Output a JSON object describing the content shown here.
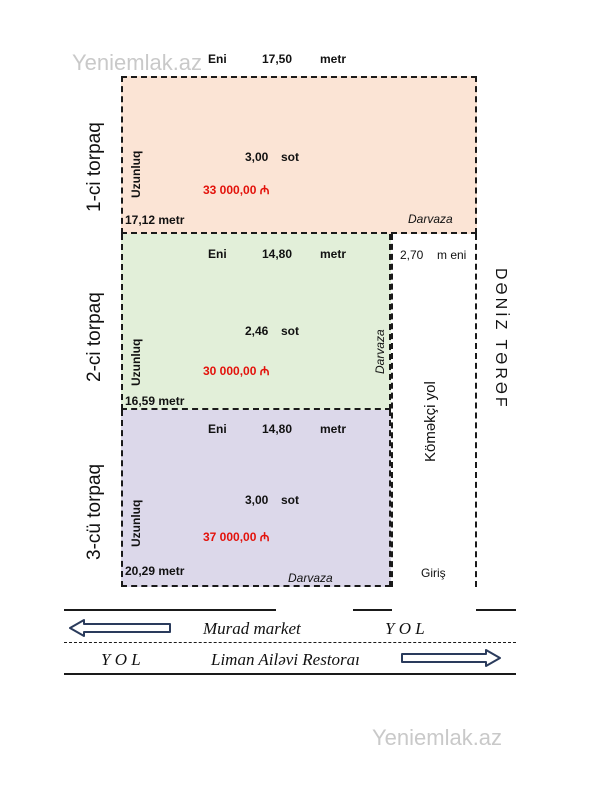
{
  "watermark": "Yeniemlak.az",
  "plots": [
    {
      "name": "1-ci torpaq",
      "width_label": "Eni",
      "width_value": "17,50",
      "width_unit": "metr",
      "length_label": "Uzunluq",
      "length_value": "17,12 metr",
      "area_value": "3,00",
      "area_unit": "sot",
      "price": "33 000,00 ₼",
      "gate": "Darvaza",
      "fill": "#fbe4d5"
    },
    {
      "name": "2-ci torpaq",
      "width_label": "Eni",
      "width_value": "14,80",
      "width_unit": "metr",
      "length_label": "Uzunluq",
      "length_value": "16,59 metr",
      "area_value": "2,46",
      "area_unit": "sot",
      "price": "30 000,00 ₼",
      "gate": "Darvaza",
      "fill": "#e2efd9"
    },
    {
      "name": "3-cü torpaq",
      "width_label": "Eni",
      "width_value": "14,80",
      "width_unit": "metr",
      "length_label": "Uzunluq",
      "length_value": "20,29 metr",
      "area_value": "3,00",
      "area_unit": "sot",
      "price": "37 000,00 ₼",
      "gate": "Darvaza",
      "fill": "#dcd8ea"
    }
  ],
  "side_road": {
    "width_value": "2,70",
    "width_unit": "m eni",
    "name": "Kömәkçi yol",
    "entrance": "Giriş"
  },
  "sea_side": "DƏNİZ TƏRƏF",
  "road": {
    "upper_left": "Murad market",
    "upper_right": "Y O L",
    "lower_left": "Y O L",
    "lower_right": "Liman Ailəvi Restoraı"
  }
}
